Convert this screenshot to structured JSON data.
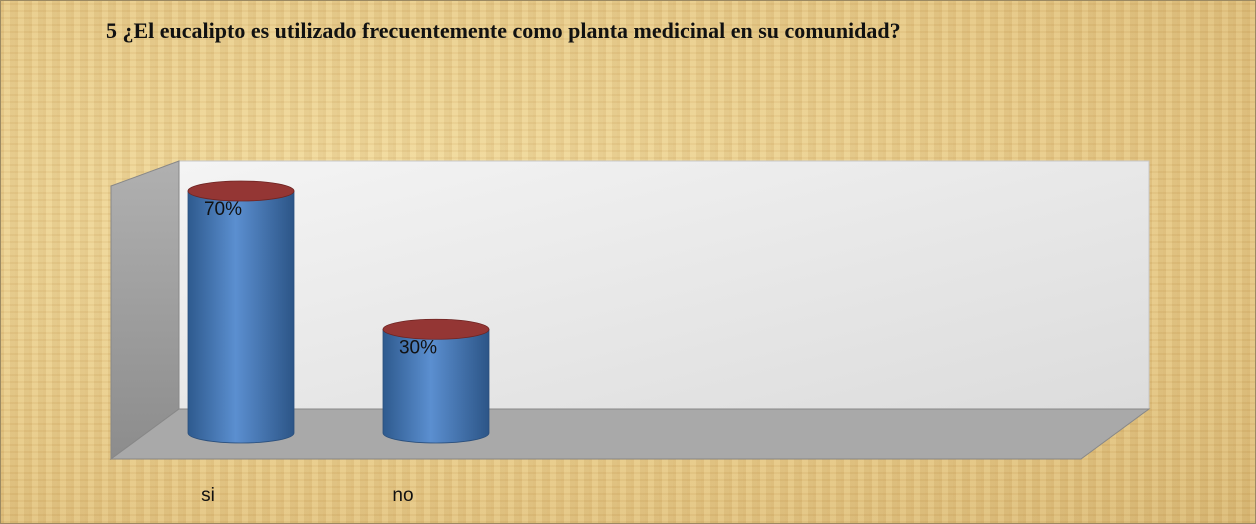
{
  "chart_data": {
    "type": "bar3d",
    "title": "5  ¿El eucalipto es utilizado frecuentemente como planta medicinal en su comunidad?",
    "categories": [
      "si",
      "no"
    ],
    "values": [
      70,
      30
    ],
    "value_labels": [
      "70%",
      "30%"
    ],
    "color": "#4f81bd",
    "top_color": "#943634"
  }
}
